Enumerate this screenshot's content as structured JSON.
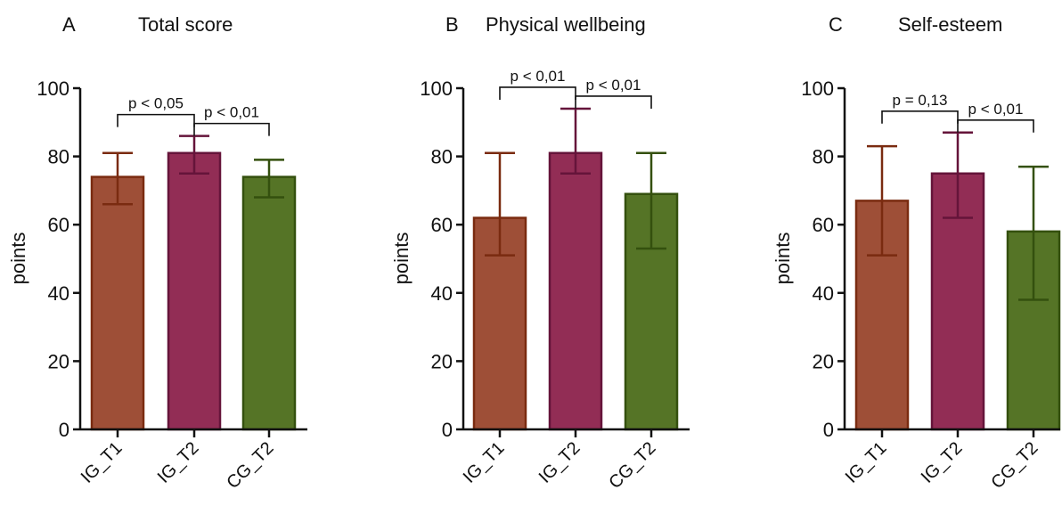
{
  "colors": {
    "IG_T1": {
      "fill": "#9e4f37",
      "stroke": "#7a2b10"
    },
    "IG_T2": {
      "fill": "#922d55",
      "stroke": "#65143a"
    },
    "CG_T2": {
      "fill": "#557426",
      "stroke": "#34500e"
    }
  },
  "chart_data": [
    {
      "type": "bar",
      "letter": "A",
      "title": "Total score",
      "ylabel": "points",
      "ylim": [
        0,
        100
      ],
      "yticks": [
        0,
        20,
        40,
        60,
        80,
        100
      ],
      "categories": [
        "IG_T1",
        "IG_T2",
        "CG_T2"
      ],
      "values": [
        74,
        81,
        74
      ],
      "err_low": [
        66,
        75,
        68
      ],
      "err_high": [
        81,
        86,
        79
      ],
      "comparisons": [
        {
          "from": 0,
          "to": 1,
          "label": "p < 0,05"
        },
        {
          "from": 1,
          "to": 2,
          "label": "p < 0,01"
        }
      ]
    },
    {
      "type": "bar",
      "letter": "B",
      "title": "Physical wellbeing",
      "ylabel": "points",
      "ylim": [
        0,
        100
      ],
      "yticks": [
        0,
        20,
        40,
        60,
        80,
        100
      ],
      "categories": [
        "IG_T1",
        "IG_T2",
        "CG_T2"
      ],
      "values": [
        62,
        81,
        69
      ],
      "err_low": [
        51,
        75,
        53
      ],
      "err_high": [
        81,
        94,
        81
      ],
      "comparisons": [
        {
          "from": 0,
          "to": 1,
          "label": "p < 0,01"
        },
        {
          "from": 1,
          "to": 2,
          "label": "p < 0,01"
        }
      ]
    },
    {
      "type": "bar",
      "letter": "C",
      "title": "Self-esteem",
      "ylabel": "points",
      "ylim": [
        0,
        100
      ],
      "yticks": [
        0,
        20,
        40,
        60,
        80,
        100
      ],
      "categories": [
        "IG_T1",
        "IG_T2",
        "CG_T2"
      ],
      "values": [
        67,
        75,
        58
      ],
      "err_low": [
        51,
        62,
        38
      ],
      "err_high": [
        83,
        87,
        77
      ],
      "comparisons": [
        {
          "from": 0,
          "to": 1,
          "label": "p = 0,13"
        },
        {
          "from": 1,
          "to": 2,
          "label": "p < 0,01"
        }
      ]
    }
  ]
}
